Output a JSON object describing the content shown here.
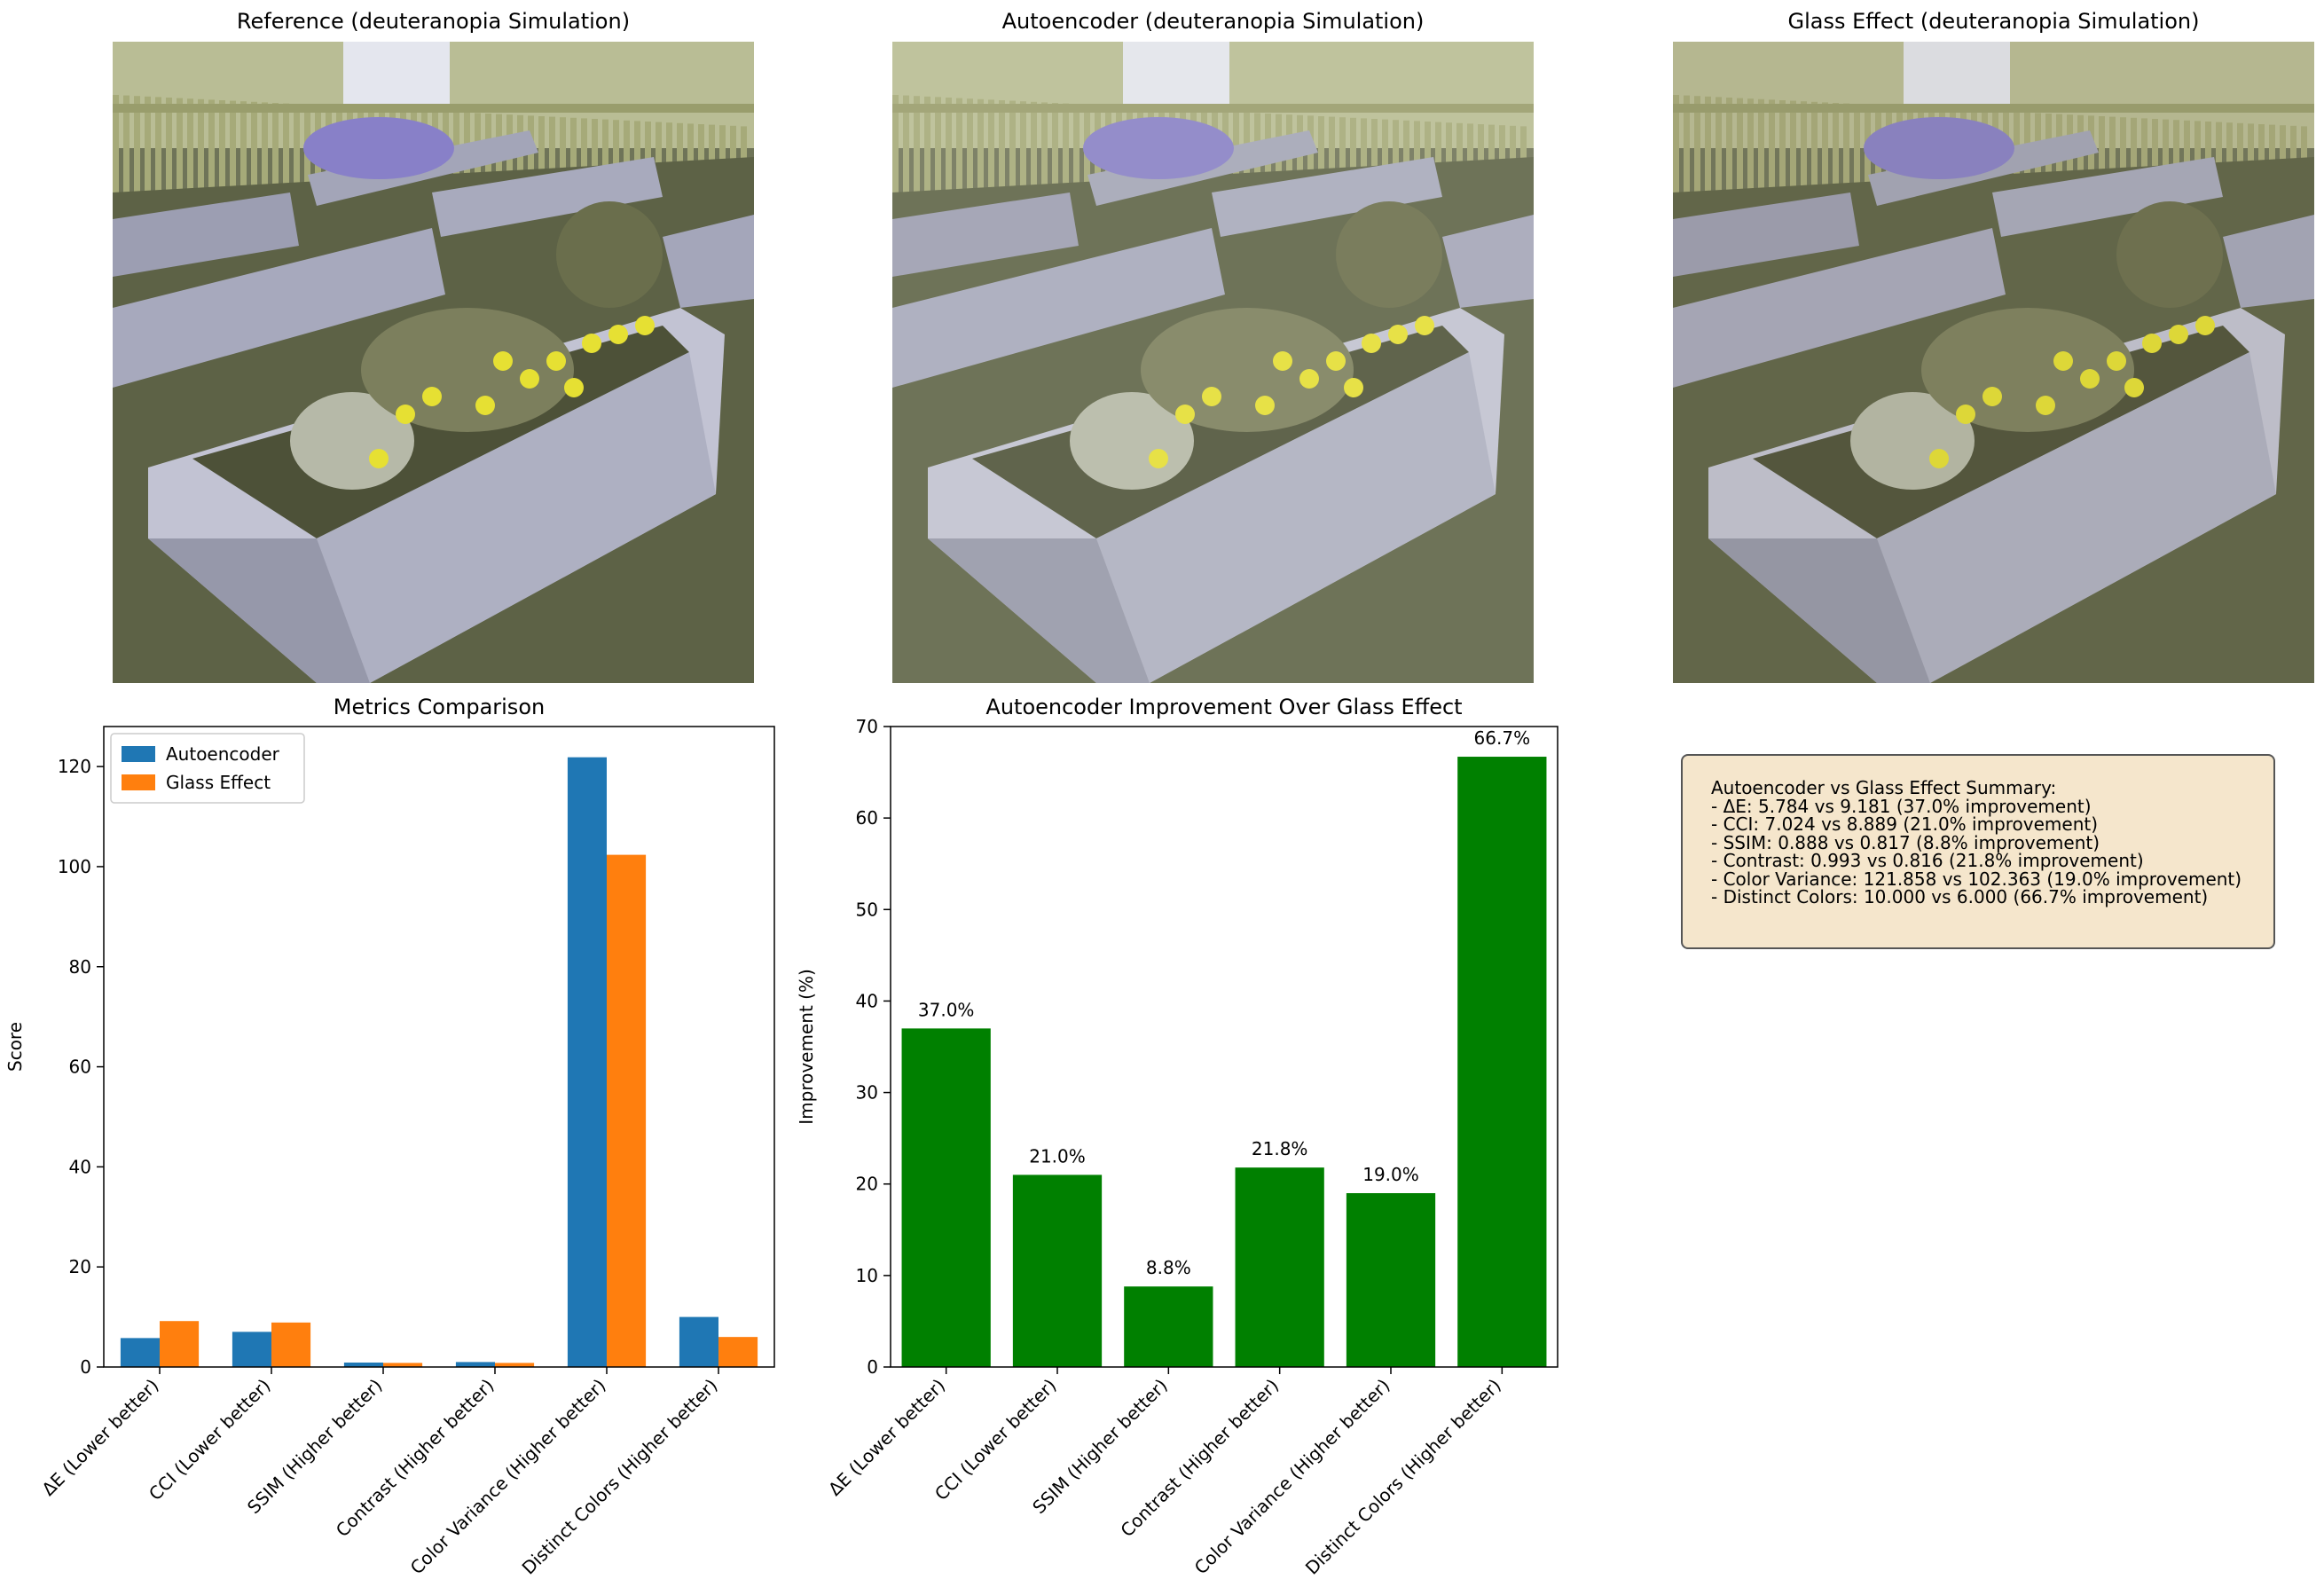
{
  "image_titles": [
    "Reference (deuteranopia Simulation)",
    "Autoencoder (deuteranopia Simulation)",
    "Glass Effect (deuteranopia Simulation)"
  ],
  "summary": {
    "lines": [
      "Autoencoder vs Glass Effect Summary:",
      "- ΔE: 5.784 vs 9.181 (37.0% improvement)",
      "- CCI: 7.024 vs 8.889 (21.0% improvement)",
      "- SSIM: 0.888 vs 0.817 (8.8% improvement)",
      "- Contrast: 0.993 vs 0.816 (21.8% improvement)",
      "- Color Variance: 121.858 vs 102.363 (19.0% improvement)",
      "- Distinct Colors: 10.000 vs 6.000 (66.7% improvement)"
    ]
  },
  "chart_data": [
    {
      "type": "bar",
      "title": "Metrics Comparison",
      "xlabel": "",
      "ylabel": "Score",
      "categories": [
        "ΔE (Lower better)",
        "CCI (Lower better)",
        "SSIM (Higher better)",
        "Contrast (Higher better)",
        "Color Variance (Higher better)",
        "Distinct Colors (Higher better)"
      ],
      "series": [
        {
          "name": "Autoencoder",
          "color": "#1f77b4",
          "values": [
            5.784,
            7.024,
            0.888,
            0.993,
            121.858,
            10.0
          ]
        },
        {
          "name": "Glass Effect",
          "color": "#ff7f0e",
          "values": [
            9.181,
            8.889,
            0.817,
            0.816,
            102.363,
            6.0
          ]
        }
      ],
      "ylim": [
        0,
        128
      ],
      "yticks": [
        0,
        20,
        40,
        60,
        80,
        100,
        120
      ],
      "legend": "top-left",
      "grid": false
    },
    {
      "type": "bar",
      "title": "Autoencoder Improvement Over Glass Effect",
      "xlabel": "",
      "ylabel": "Improvement (%)",
      "categories": [
        "ΔE (Lower better)",
        "CCI (Lower better)",
        "SSIM (Higher better)",
        "Contrast (Higher better)",
        "Color Variance (Higher better)",
        "Distinct Colors (Higher better)"
      ],
      "values": [
        37.0,
        21.0,
        8.8,
        21.8,
        19.0,
        66.7
      ],
      "data_labels": [
        "37.0%",
        "21.0%",
        "8.8%",
        "21.8%",
        "19.0%",
        "66.7%"
      ],
      "color": "#008000",
      "ylim": [
        0,
        70
      ],
      "yticks": [
        0,
        10,
        20,
        30,
        40,
        50,
        60,
        70
      ],
      "grid": false
    }
  ]
}
